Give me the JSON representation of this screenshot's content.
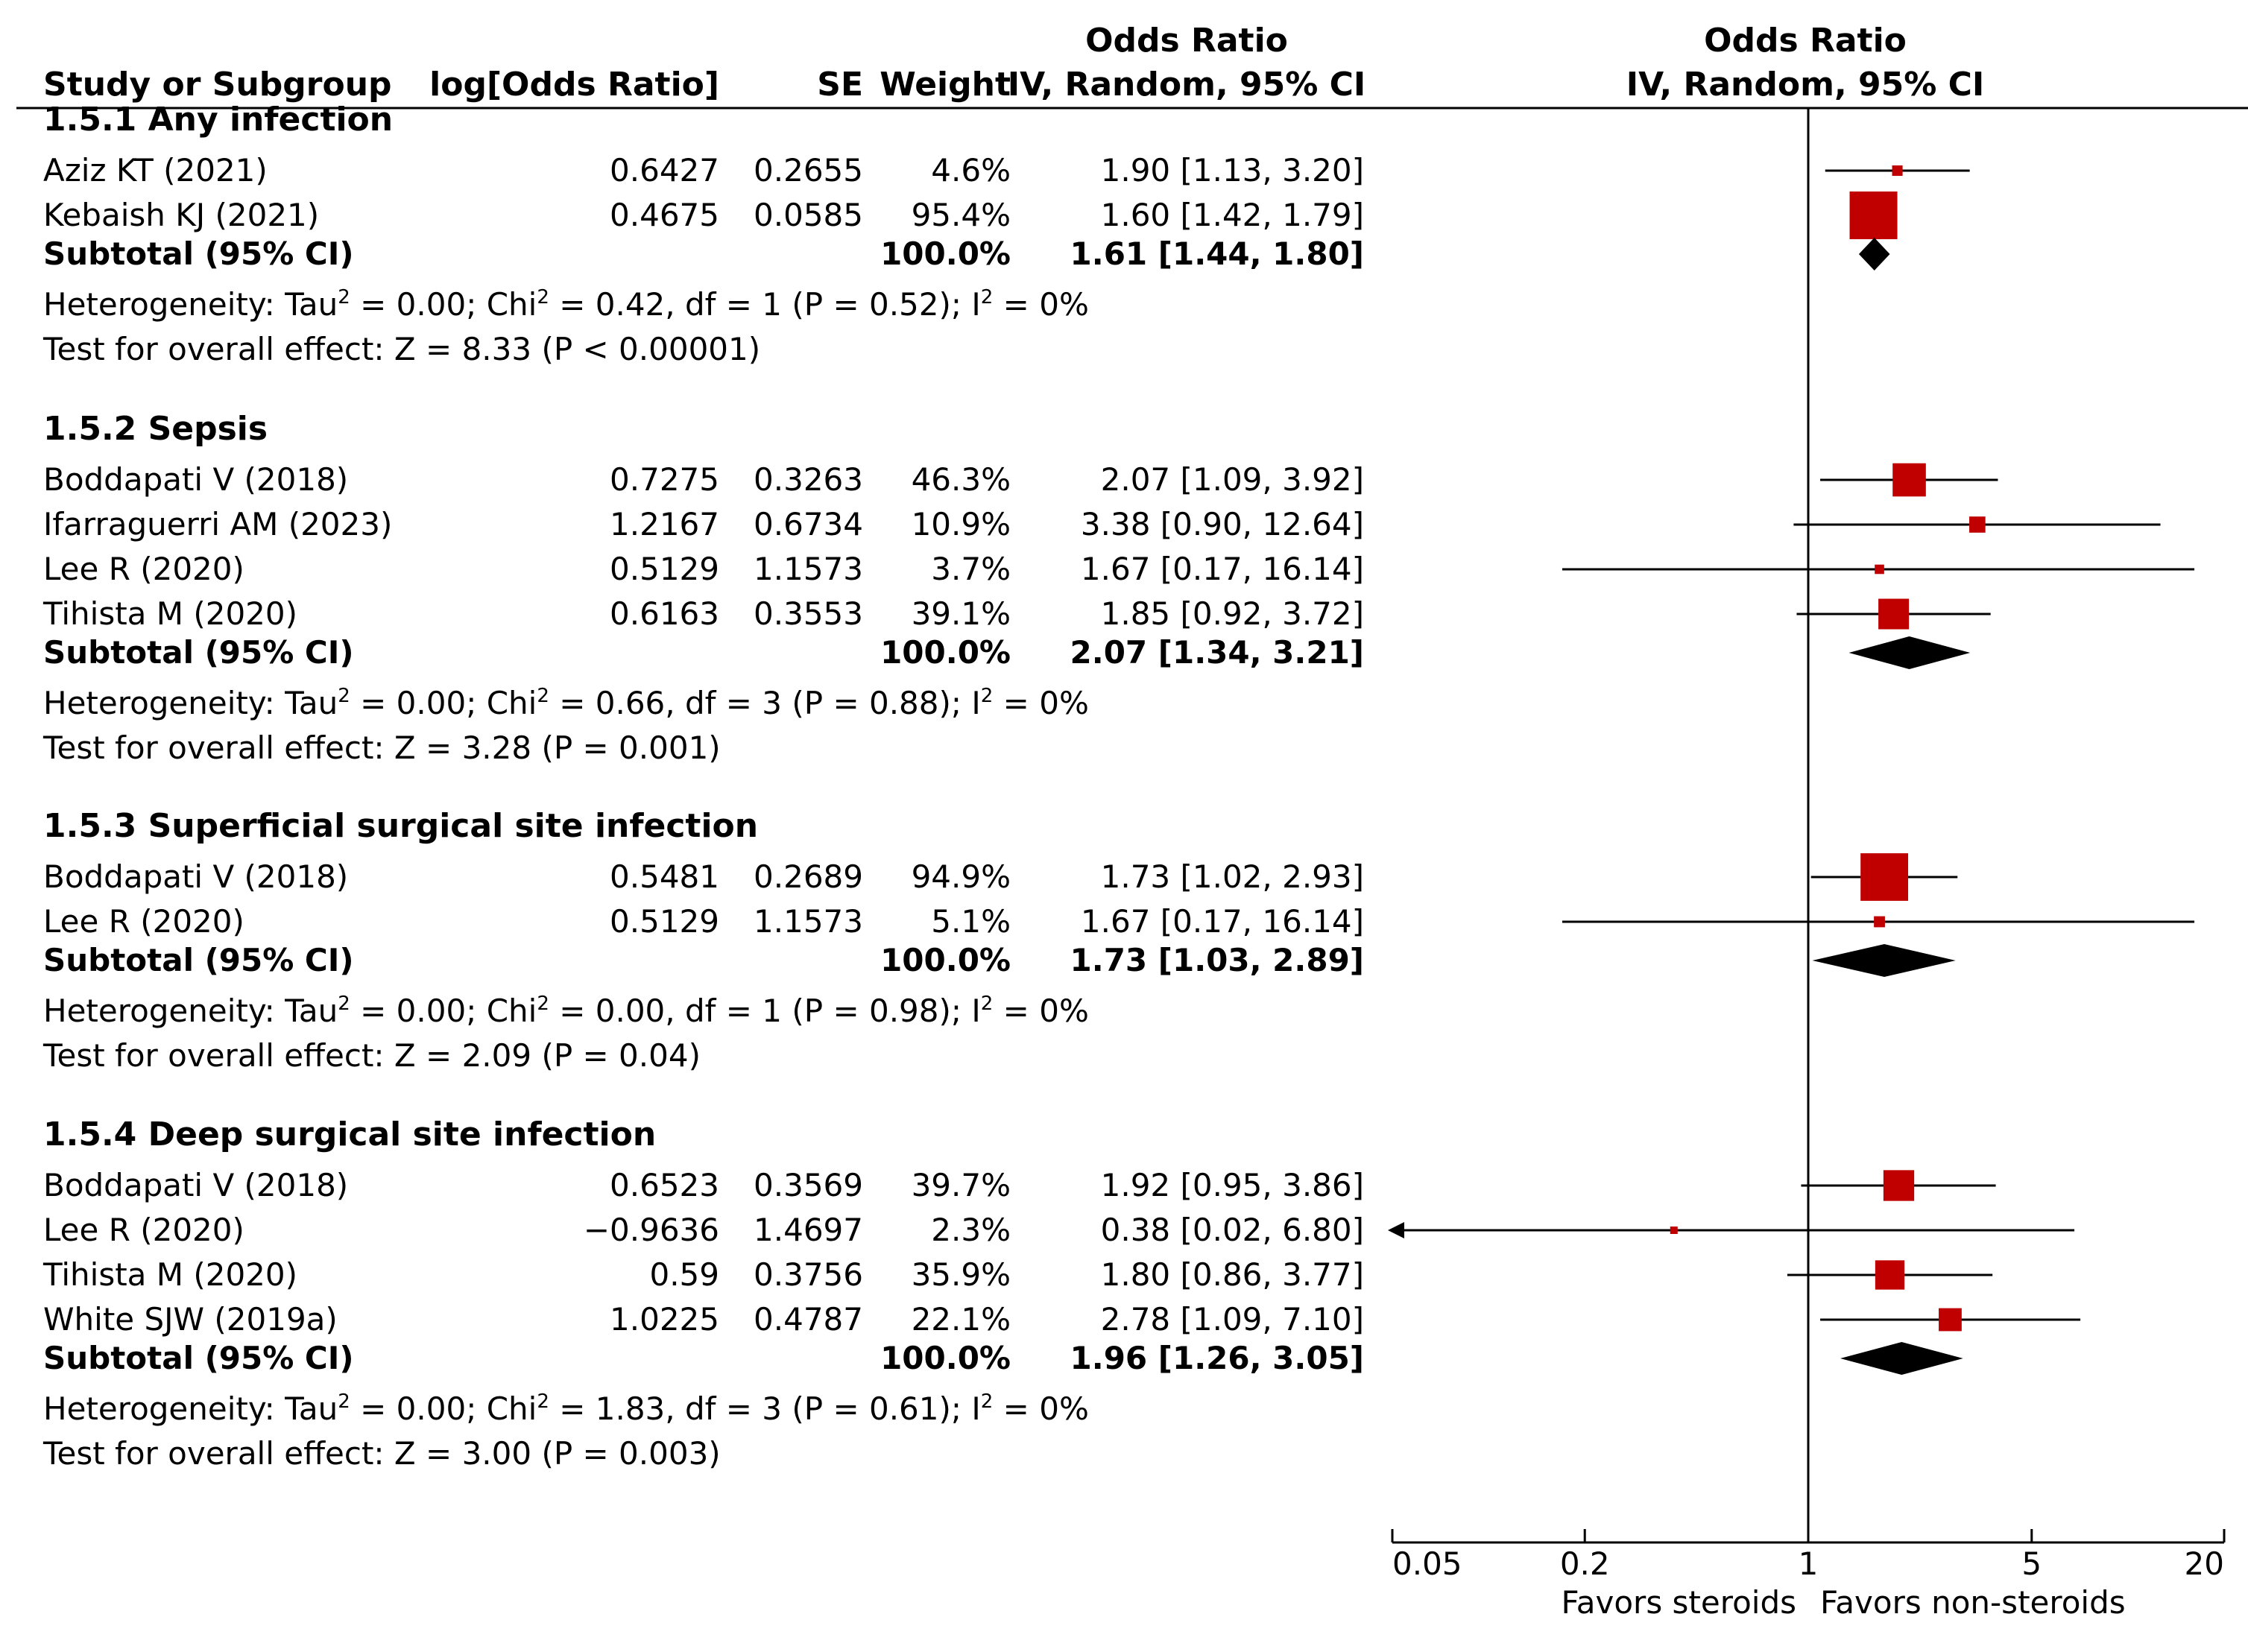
{
  "chart_data": {
    "type": "forest",
    "headers": {
      "study": "Study or Subgroup",
      "logor": "log[Odds Ratio]",
      "se": "SE",
      "weight": "Weight",
      "or_top": "Odds Ratio",
      "or_method": "IV, Random, 95% CI",
      "plot_top": "Odds Ratio",
      "plot_method": "IV, Random, 95% CI"
    },
    "groups": [
      {
        "title": "1.5.1 Any infection",
        "studies": [
          {
            "name": "Aziz KT (2021)",
            "logor": "0.6427",
            "se": "0.2655",
            "weight": "4.6%",
            "ci": "1.90 [1.13, 3.20]",
            "or": 1.9,
            "lo": 1.13,
            "hi": 3.2,
            "w": 4.6
          },
          {
            "name": "Kebaish KJ (2021)",
            "logor": "0.4675",
            "se": "0.0585",
            "weight": "95.4%",
            "ci": "1.60 [1.42, 1.79]",
            "or": 1.6,
            "lo": 1.42,
            "hi": 1.79,
            "w": 95.4
          }
        ],
        "subtotal": {
          "label": "Subtotal (95% CI)",
          "weight": "100.0%",
          "ci": "1.61 [1.44, 1.80]",
          "or": 1.61,
          "lo": 1.44,
          "hi": 1.8
        },
        "heterogeneity": {
          "pre": "Heterogeneity: Tau",
          "mid1": " = 0.00; Chi",
          "mid2": " = 0.42, df = 1 (P = 0.52); I",
          "post": " = 0%",
          "sup": "2"
        },
        "overall": "Test for overall effect: Z = 8.33 (P < 0.00001)"
      },
      {
        "title": "1.5.2 Sepsis",
        "studies": [
          {
            "name": "Boddapati V (2018)",
            "logor": "0.7275",
            "se": "0.3263",
            "weight": "46.3%",
            "ci": "2.07 [1.09, 3.92]",
            "or": 2.07,
            "lo": 1.09,
            "hi": 3.92,
            "w": 46.3
          },
          {
            "name": "Ifarraguerri AM (2023)",
            "logor": "1.2167",
            "se": "0.6734",
            "weight": "10.9%",
            "ci": "3.38 [0.90, 12.64]",
            "or": 3.38,
            "lo": 0.9,
            "hi": 12.64,
            "w": 10.9
          },
          {
            "name": "Lee R (2020)",
            "logor": "0.5129",
            "se": "1.1573",
            "weight": "3.7%",
            "ci": "1.67 [0.17, 16.14]",
            "or": 1.67,
            "lo": 0.17,
            "hi": 16.14,
            "w": 3.7
          },
          {
            "name": "Tihista M (2020)",
            "logor": "0.6163",
            "se": "0.3553",
            "weight": "39.1%",
            "ci": "1.85 [0.92, 3.72]",
            "or": 1.85,
            "lo": 0.92,
            "hi": 3.72,
            "w": 39.1
          }
        ],
        "subtotal": {
          "label": "Subtotal (95% CI)",
          "weight": "100.0%",
          "ci": "2.07 [1.34, 3.21]",
          "or": 2.07,
          "lo": 1.34,
          "hi": 3.21
        },
        "heterogeneity": {
          "pre": "Heterogeneity: Tau",
          "mid1": " = 0.00; Chi",
          "mid2": " = 0.66, df = 3 (P = 0.88); I",
          "post": " = 0%",
          "sup": "2"
        },
        "overall": "Test for overall effect: Z = 3.28 (P = 0.001)"
      },
      {
        "title": "1.5.3 Superficial surgical site infection",
        "studies": [
          {
            "name": "Boddapati V (2018)",
            "logor": "0.5481",
            "se": "0.2689",
            "weight": "94.9%",
            "ci": "1.73 [1.02, 2.93]",
            "or": 1.73,
            "lo": 1.02,
            "hi": 2.93,
            "w": 94.9
          },
          {
            "name": "Lee R (2020)",
            "logor": "0.5129",
            "se": "1.1573",
            "weight": "5.1%",
            "ci": "1.67 [0.17, 16.14]",
            "or": 1.67,
            "lo": 0.17,
            "hi": 16.14,
            "w": 5.1
          }
        ],
        "subtotal": {
          "label": "Subtotal (95% CI)",
          "weight": "100.0%",
          "ci": "1.73 [1.03, 2.89]",
          "or": 1.73,
          "lo": 1.03,
          "hi": 2.89
        },
        "heterogeneity": {
          "pre": "Heterogeneity: Tau",
          "mid1": " = 0.00; Chi",
          "mid2": " = 0.00, df = 1 (P = 0.98); I",
          "post": " = 0%",
          "sup": "2"
        },
        "overall": "Test for overall effect: Z = 2.09 (P = 0.04)"
      },
      {
        "title": "1.5.4 Deep surgical site infection",
        "studies": [
          {
            "name": "Boddapati V (2018)",
            "logor": "0.6523",
            "se": "0.3569",
            "weight": "39.7%",
            "ci": "1.92 [0.95, 3.86]",
            "or": 1.92,
            "lo": 0.95,
            "hi": 3.86,
            "w": 39.7
          },
          {
            "name": "Lee R (2020)",
            "logor": "−0.9636",
            "se": "1.4697",
            "weight": "2.3%",
            "ci": "0.38 [0.02, 6.80]",
            "or": 0.38,
            "lo": 0.02,
            "hi": 6.8,
            "w": 2.3
          },
          {
            "name": "Tihista M (2020)",
            "logor": "0.59",
            "se": "0.3756",
            "weight": "35.9%",
            "ci": "1.80 [0.86, 3.77]",
            "or": 1.8,
            "lo": 0.86,
            "hi": 3.77,
            "w": 35.9
          },
          {
            "name": "White SJW (2019a)",
            "logor": "1.0225",
            "se": "0.4787",
            "weight": "22.1%",
            "ci": "2.78 [1.09, 7.10]",
            "or": 2.78,
            "lo": 1.09,
            "hi": 7.1,
            "w": 22.1
          }
        ],
        "subtotal": {
          "label": "Subtotal (95% CI)",
          "weight": "100.0%",
          "ci": "1.96 [1.26, 3.05]",
          "or": 1.96,
          "lo": 1.26,
          "hi": 3.05
        },
        "heterogeneity": {
          "pre": "Heterogeneity: Tau",
          "mid1": " = 0.00; Chi",
          "mid2": " = 1.83, df = 3 (P = 0.61); I",
          "post": " = 0%",
          "sup": "2"
        },
        "overall": "Test for overall effect: Z = 3.00 (P = 0.003)"
      }
    ],
    "axis": {
      "scale": "log",
      "range": [
        0.05,
        20
      ],
      "ticks": [
        {
          "value": 0.05,
          "label": "0.05"
        },
        {
          "value": 0.2,
          "label": "0.2"
        },
        {
          "value": 1,
          "label": "1"
        },
        {
          "value": 5,
          "label": "5"
        },
        {
          "value": 20,
          "label": "20"
        }
      ],
      "null_value": 1,
      "left_label": "Favors steroids",
      "right_label": "Favors non-steroids"
    },
    "colors": {
      "square": "#c00000",
      "diamond": "#000000",
      "line": "#000000"
    }
  }
}
